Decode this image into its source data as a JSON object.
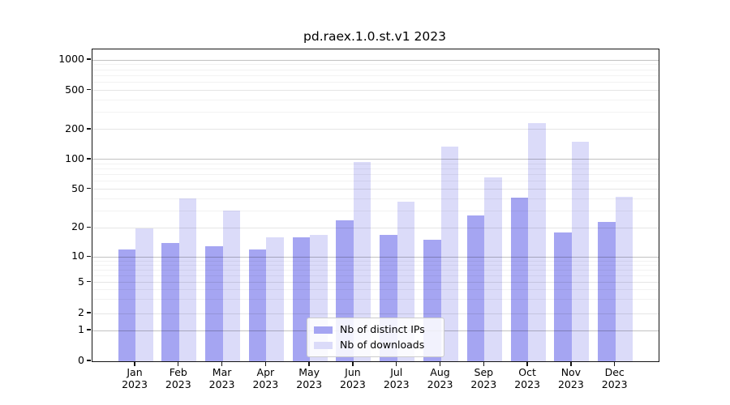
{
  "chart_data": {
    "type": "bar",
    "title": "pd.raex.1.0.st.v1 2023",
    "categories": [
      "Jan 2023",
      "Feb 2023",
      "Mar 2023",
      "Apr 2023",
      "May 2023",
      "Jun 2023",
      "Jul 2023",
      "Aug 2023",
      "Sep 2023",
      "Oct 2023",
      "Nov 2023",
      "Dec 2023"
    ],
    "series": [
      {
        "name": "Nb of distinct IPs",
        "color": "#a5a5f2",
        "values": [
          12,
          14,
          13,
          12,
          16,
          24,
          17,
          15,
          27,
          41,
          18,
          23
        ]
      },
      {
        "name": "Nb of downloads",
        "color": "#dbdbf9",
        "values": [
          20,
          40,
          30,
          16,
          17,
          95,
          37,
          134,
          66,
          232,
          150,
          42
        ]
      }
    ],
    "xlabel": "",
    "ylabel": "",
    "yscale": "symlog",
    "yticks": [
      0,
      1,
      2,
      5,
      10,
      20,
      50,
      100,
      200,
      500,
      1000
    ],
    "minor_yticks": [
      3,
      4,
      6,
      7,
      8,
      9,
      30,
      40,
      60,
      70,
      80,
      90,
      300,
      400,
      600,
      700,
      800,
      900
    ],
    "ylim": [
      0,
      1300
    ],
    "grid": true,
    "legend_position": "lower center"
  }
}
